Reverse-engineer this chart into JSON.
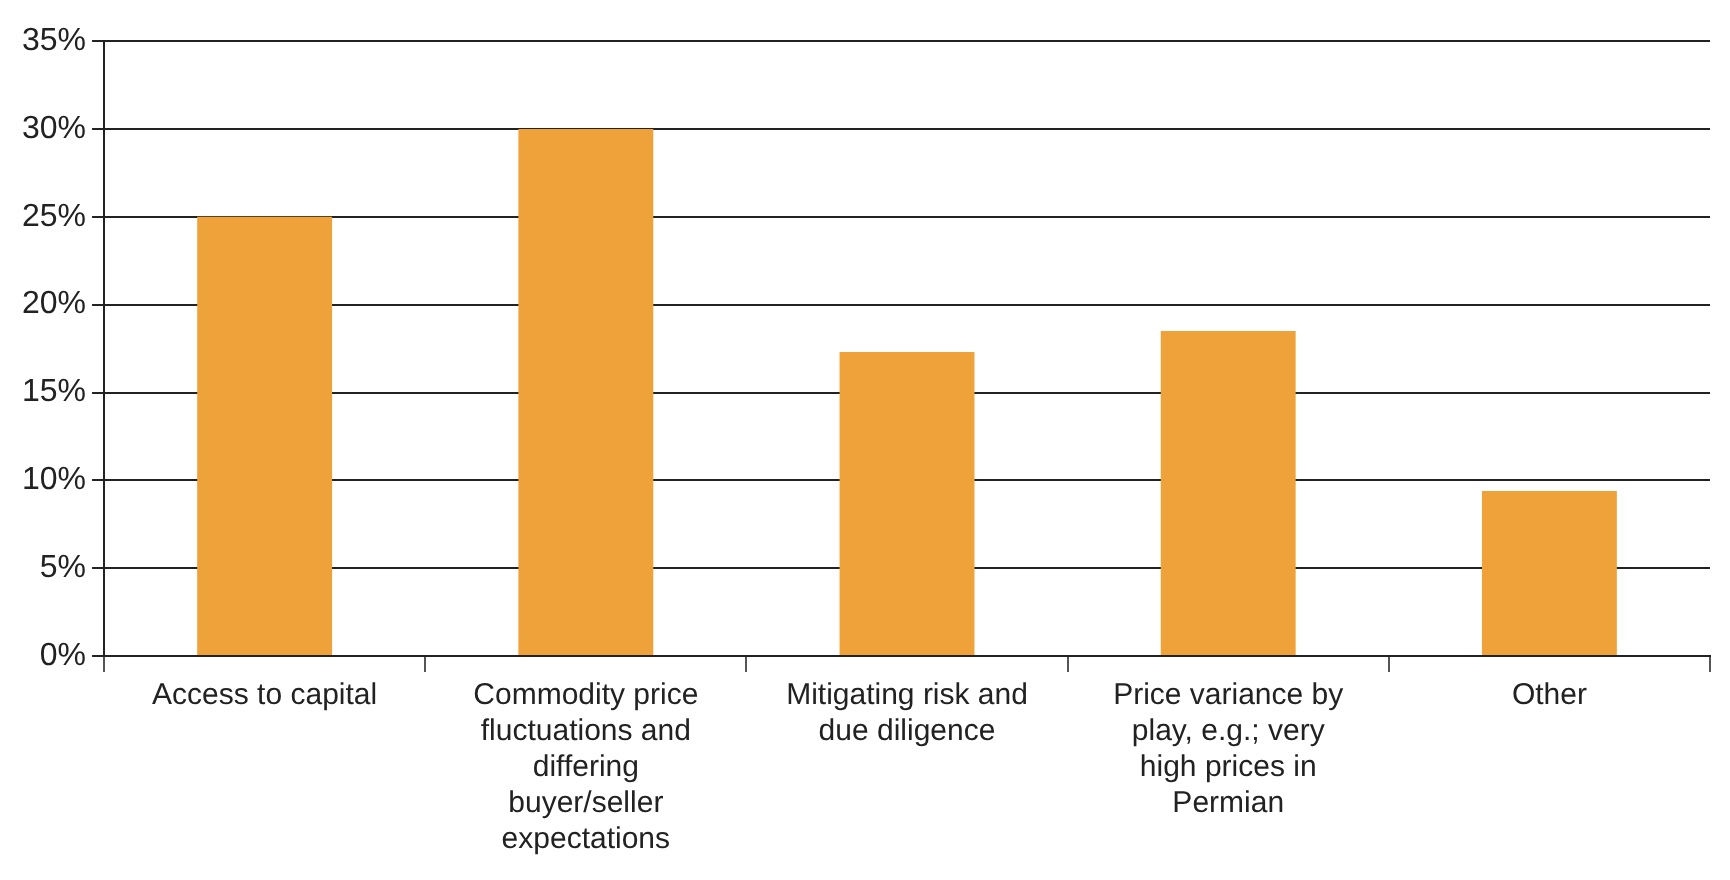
{
  "chart_data": {
    "type": "bar",
    "categories": [
      "Access to capital",
      "Commodity price fluctuations and differing buyer/seller expectations",
      "Mitigating risk and due diligence",
      "Price variance by play, e.g.; very high prices in Permian",
      "Other"
    ],
    "values": [
      25,
      30,
      17.3,
      18.5,
      9.4
    ],
    "color": "#f0a23a",
    "ylim": [
      0,
      35
    ],
    "yticks": [
      {
        "value": 0,
        "label": "0%"
      },
      {
        "value": 5,
        "label": "5%"
      },
      {
        "value": 10,
        "label": "10%"
      },
      {
        "value": 15,
        "label": "15%"
      },
      {
        "value": 20,
        "label": "20%"
      },
      {
        "value": 25,
        "label": "25%"
      },
      {
        "value": 30,
        "label": "30%"
      },
      {
        "value": 35,
        "label": "35%"
      }
    ],
    "grid": "y",
    "legend": false
  }
}
